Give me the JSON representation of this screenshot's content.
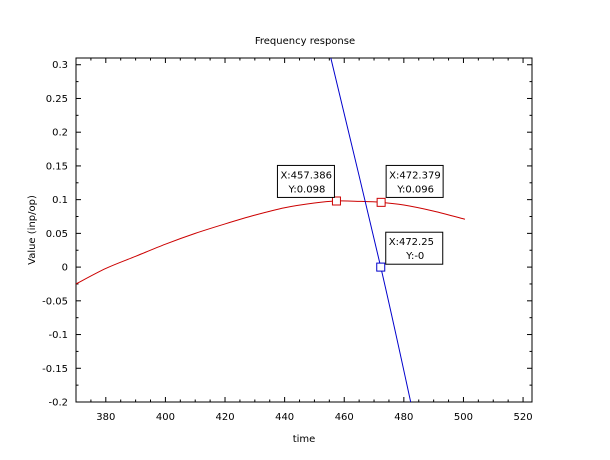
{
  "chart_data": {
    "type": "line",
    "title": "Frequency response",
    "xlabel": "time",
    "ylabel": "Value (inp/op)",
    "xlim": [
      370,
      523
    ],
    "ylim": [
      -0.2,
      0.31
    ],
    "x_ticks": [
      "380",
      "400",
      "420",
      "440",
      "460",
      "480",
      "500",
      "520"
    ],
    "y_ticks": [
      "0.3",
      "0.25",
      "0.2",
      "0.15",
      "0.1",
      "0.05",
      "0",
      "-0.05",
      "-0.1",
      "-0.15",
      "-0.2"
    ],
    "grid": false,
    "legend": "none",
    "series": [
      {
        "color": "#cc0000",
        "x": [
          370,
          380,
          390,
          400,
          410,
          420,
          430,
          440,
          450,
          457.386,
          465,
          472.379,
          480,
          490,
          500.5
        ],
        "y": [
          -0.025,
          -0.002,
          0.016,
          0.034,
          0.05,
          0.064,
          0.077,
          0.088,
          0.095,
          0.098,
          0.0975,
          0.096,
          0.092,
          0.083,
          0.071
        ]
      },
      {
        "color": "#0000cc",
        "x": [
          455.5,
          472.25,
          482.3
        ],
        "y": [
          0.31,
          0.0,
          -0.2
        ]
      }
    ],
    "datatips": [
      {
        "marker_color": "#cc0000",
        "x": 457.386,
        "y": 0.098,
        "x_label": "X:457.386",
        "y_label": "Y:0.098",
        "box_side": "left",
        "box_level": 0.127
      },
      {
        "marker_color": "#cc0000",
        "x": 472.379,
        "y": 0.096,
        "x_label": "X:472.379",
        "y_label": "Y:0.096",
        "box_side": "right",
        "box_level": 0.127
      },
      {
        "marker_color": "#0000cc",
        "x": 472.25,
        "y": 0.0,
        "x_label": "X:472.25",
        "y_label": "Y:-0",
        "box_side": "right",
        "box_level": 0.028
      }
    ]
  }
}
